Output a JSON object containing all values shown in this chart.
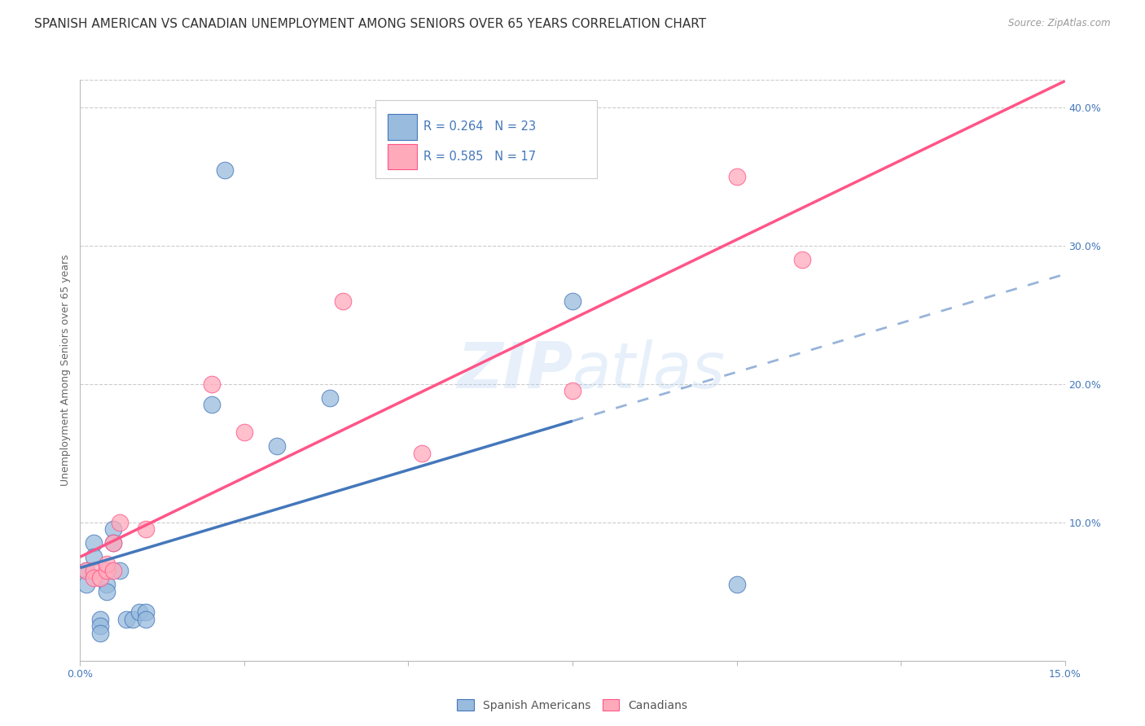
{
  "title": "SPANISH AMERICAN VS CANADIAN UNEMPLOYMENT AMONG SENIORS OVER 65 YEARS CORRELATION CHART",
  "source": "Source: ZipAtlas.com",
  "ylabel": "Unemployment Among Seniors over 65 years",
  "xlim": [
    0.0,
    0.15
  ],
  "ylim": [
    0.0,
    0.42
  ],
  "xticks": [
    0.0,
    0.025,
    0.05,
    0.075,
    0.1,
    0.125,
    0.15
  ],
  "xtick_labels": [
    "0.0%",
    "",
    "",
    "",
    "",
    "",
    "15.0%"
  ],
  "ytick_right": [
    0.0,
    0.1,
    0.2,
    0.3,
    0.4
  ],
  "ytick_right_labels": [
    "",
    "10.0%",
    "20.0%",
    "30.0%",
    "40.0%"
  ],
  "color_blue": "#99BBDD",
  "color_blue_line": "#4477BB",
  "color_pink": "#FFAABB",
  "color_pink_line": "#FF5588",
  "color_text_blue": "#4477BB",
  "watermark": "ZIPatlas",
  "spanish_x": [
    0.001,
    0.001,
    0.002,
    0.002,
    0.003,
    0.003,
    0.003,
    0.004,
    0.004,
    0.005,
    0.005,
    0.006,
    0.007,
    0.008,
    0.009,
    0.01,
    0.01,
    0.02,
    0.022,
    0.03,
    0.038,
    0.075,
    0.1
  ],
  "spanish_y": [
    0.065,
    0.055,
    0.085,
    0.075,
    0.03,
    0.025,
    0.02,
    0.055,
    0.05,
    0.095,
    0.085,
    0.065,
    0.03,
    0.03,
    0.035,
    0.035,
    0.03,
    0.185,
    0.355,
    0.155,
    0.19,
    0.26,
    0.055
  ],
  "canadian_x": [
    0.001,
    0.002,
    0.002,
    0.003,
    0.004,
    0.004,
    0.005,
    0.005,
    0.006,
    0.01,
    0.02,
    0.025,
    0.04,
    0.052,
    0.075,
    0.1,
    0.11
  ],
  "canadian_y": [
    0.065,
    0.065,
    0.06,
    0.06,
    0.065,
    0.07,
    0.065,
    0.085,
    0.1,
    0.095,
    0.2,
    0.165,
    0.26,
    0.15,
    0.195,
    0.35,
    0.29
  ],
  "grid_color": "#CCCCCC",
  "bg_color": "#FFFFFF",
  "title_fontsize": 11,
  "label_fontsize": 9,
  "tick_fontsize": 9,
  "blue_line_solid_end": 0.075,
  "blue_line_dash_start": 0.075
}
